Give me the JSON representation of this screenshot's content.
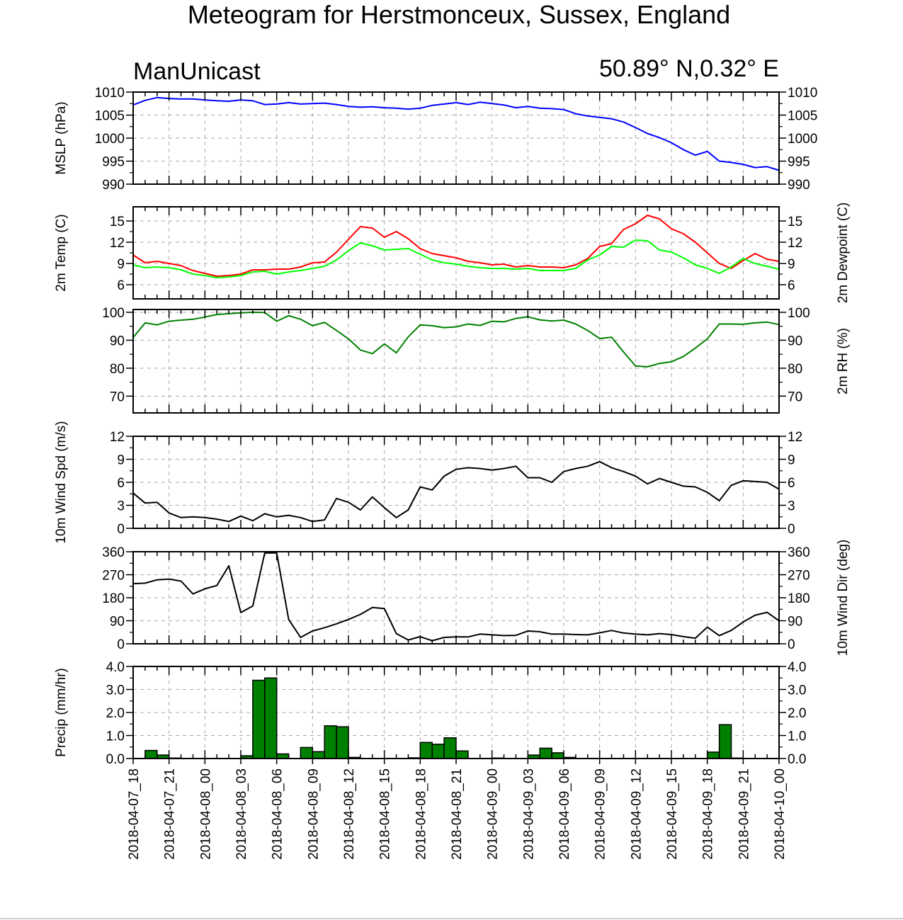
{
  "title": "Meteogram for Herstmonceux, Sussex, England",
  "model_label": "ManUnicast",
  "location_label": "50.89° N,0.32° E",
  "x_labels": [
    "2018-04-07_18",
    "2018-04-07_21",
    "2018-04-08_00",
    "2018-04-08_03",
    "2018-04-08_06",
    "2018-04-08_09",
    "2018-04-08_12",
    "2018-04-08_15",
    "2018-04-08_18",
    "2018-04-08_21",
    "2018-04-09_00",
    "2018-04-09_03",
    "2018-04-09_06",
    "2018-04-09_09",
    "2018-04-09_12",
    "2018-04-09_15",
    "2018-04-09_18",
    "2018-04-09_21",
    "2018-04-10_00"
  ],
  "chart_data": [
    {
      "type": "line",
      "ylabel": "MSLP (hPa)",
      "ylim": [
        990,
        1010
      ],
      "yticks": [
        990,
        995,
        1000,
        1005,
        1010
      ],
      "ytick_labels": [
        "990",
        "995",
        "1000",
        "1005",
        "1010"
      ],
      "grid": true,
      "series": [
        {
          "color": "#0000ff",
          "x": [
            0,
            1,
            2,
            3,
            4,
            5,
            6,
            7,
            8,
            9,
            10,
            11,
            12,
            13,
            14,
            15,
            16,
            17,
            18,
            19,
            20,
            21,
            22,
            23,
            24,
            25,
            26,
            27,
            28,
            29,
            30,
            31,
            32,
            33,
            34,
            35,
            36,
            37,
            38,
            39,
            40,
            41,
            42,
            43,
            44,
            45,
            46,
            47,
            48,
            49,
            50,
            51,
            52,
            53,
            54
          ],
          "y": [
            1007.2,
            1008.2,
            1008.8,
            1008.6,
            1008.5,
            1008.5,
            1008.3,
            1008.1,
            1008.0,
            1008.3,
            1008.1,
            1007.3,
            1007.4,
            1007.7,
            1007.4,
            1007.5,
            1007.6,
            1007.3,
            1006.9,
            1006.7,
            1006.8,
            1006.6,
            1006.5,
            1006.3,
            1006.5,
            1007.1,
            1007.4,
            1007.7,
            1007.3,
            1007.8,
            1007.5,
            1007.2,
            1006.6,
            1006.9,
            1006.5,
            1006.4,
            1006.2,
            1005.3,
            1004.8,
            1004.5,
            1004.2,
            1003.5,
            1002.3,
            1001.0,
            1000.1,
            999.0,
            997.5,
            996.3,
            997.1,
            995.0,
            994.7,
            994.3,
            993.6,
            993.8,
            993.0
          ]
        }
      ]
    },
    {
      "type": "line",
      "ylabel": "2m Temp (C)",
      "ylabel_right": "2m Dewpoint (C)",
      "ylim": [
        4,
        17
      ],
      "yticks": [
        6,
        9,
        12,
        15
      ],
      "ytick_labels": [
        "6",
        "9",
        "12",
        "15"
      ],
      "grid": true,
      "series": [
        {
          "color": "#ff0000",
          "x": [
            0,
            1,
            2,
            3,
            4,
            5,
            6,
            7,
            8,
            9,
            10,
            11,
            12,
            13,
            14,
            15,
            16,
            17,
            18,
            19,
            20,
            21,
            22,
            23,
            24,
            25,
            26,
            27,
            28,
            29,
            30,
            31,
            32,
            33,
            34,
            35,
            36,
            37,
            38,
            39,
            40,
            41,
            42,
            43,
            44,
            45,
            46,
            47,
            48,
            49,
            50,
            51,
            52,
            53,
            54
          ],
          "y": [
            10.2,
            9.1,
            9.3,
            9.0,
            8.7,
            8.0,
            7.6,
            7.2,
            7.3,
            7.5,
            8.1,
            8.1,
            8.2,
            8.2,
            8.5,
            9.1,
            9.2,
            10.6,
            12.4,
            14.2,
            14.0,
            12.7,
            13.5,
            12.5,
            11.1,
            10.4,
            10.1,
            9.8,
            9.3,
            9.1,
            8.8,
            8.9,
            8.5,
            8.7,
            8.5,
            8.5,
            8.4,
            8.8,
            9.7,
            11.4,
            11.8,
            13.8,
            14.6,
            15.8,
            15.3,
            13.9,
            13.2,
            12.0,
            10.5,
            9.0,
            8.3,
            9.4,
            10.4,
            9.6,
            9.3
          ]
        },
        {
          "color": "#00ff00",
          "x": [
            0,
            1,
            2,
            3,
            4,
            5,
            6,
            7,
            8,
            9,
            10,
            11,
            12,
            13,
            14,
            15,
            16,
            17,
            18,
            19,
            20,
            21,
            22,
            23,
            24,
            25,
            26,
            27,
            28,
            29,
            30,
            31,
            32,
            33,
            34,
            35,
            36,
            37,
            38,
            39,
            40,
            41,
            42,
            43,
            44,
            45,
            46,
            47,
            48,
            49,
            50,
            51,
            52,
            53,
            54
          ],
          "y": [
            8.8,
            8.4,
            8.5,
            8.4,
            8.1,
            7.5,
            7.3,
            7.0,
            7.1,
            7.3,
            7.8,
            7.9,
            7.5,
            7.8,
            8.0,
            8.3,
            8.6,
            9.5,
            10.8,
            11.9,
            11.5,
            10.9,
            11.0,
            11.1,
            10.3,
            9.5,
            9.1,
            8.9,
            8.6,
            8.4,
            8.3,
            8.3,
            8.2,
            8.3,
            8.0,
            8.0,
            8.0,
            8.3,
            9.5,
            10.2,
            11.4,
            11.3,
            12.3,
            12.2,
            10.9,
            10.6,
            9.8,
            8.8,
            8.3,
            7.6,
            8.5,
            9.7,
            9.0,
            8.6,
            8.2
          ]
        }
      ]
    },
    {
      "type": "line",
      "ylabel_right": "2m RH (%)",
      "ylim": [
        64,
        101
      ],
      "yticks": [
        70,
        80,
        90,
        100
      ],
      "ytick_labels": [
        "70",
        "80",
        "90",
        "100"
      ],
      "grid": true,
      "series": [
        {
          "color": "#008000",
          "x": [
            0,
            1,
            2,
            3,
            4,
            5,
            6,
            7,
            8,
            9,
            10,
            11,
            12,
            13,
            14,
            15,
            16,
            17,
            18,
            19,
            20,
            21,
            22,
            23,
            24,
            25,
            26,
            27,
            28,
            29,
            30,
            31,
            32,
            33,
            34,
            35,
            36,
            37,
            38,
            39,
            40,
            41,
            42,
            43,
            44,
            45,
            46,
            47,
            48,
            49,
            50,
            51,
            52,
            53,
            54
          ],
          "y": [
            91,
            96.2,
            95.5,
            96.8,
            97.2,
            97.5,
            98.3,
            99.2,
            99.5,
            99.8,
            100,
            99.9,
            96.8,
            98.8,
            97.5,
            95.2,
            96.4,
            93.5,
            90.5,
            86.5,
            85.2,
            88.7,
            85.5,
            91.2,
            95.5,
            95.2,
            94.5,
            94.8,
            95.8,
            95.3,
            96.8,
            96.6,
            97.8,
            98.4,
            97.3,
            96.9,
            97.2,
            95.8,
            93.5,
            90.6,
            91.1,
            85.8,
            80.8,
            80.5,
            81.7,
            82.3,
            84.2,
            87.2,
            90.5,
            95.8,
            95.8,
            95.7,
            96.2,
            96.5,
            95.6
          ]
        }
      ]
    },
    {
      "type": "line",
      "ylabel": "10m Wind Spd (m/s)",
      "ylim": [
        0,
        12
      ],
      "yticks": [
        0,
        3,
        6,
        9,
        12
      ],
      "ytick_labels": [
        "0",
        "3",
        "6",
        "9",
        "12"
      ],
      "grid": true,
      "series": [
        {
          "color": "#000000",
          "x": [
            0,
            1,
            2,
            3,
            4,
            5,
            6,
            7,
            8,
            9,
            10,
            11,
            12,
            13,
            14,
            15,
            16,
            17,
            18,
            19,
            20,
            21,
            22,
            23,
            24,
            25,
            26,
            27,
            28,
            29,
            30,
            31,
            32,
            33,
            34,
            35,
            36,
            37,
            38,
            39,
            40,
            41,
            42,
            43,
            44,
            45,
            46,
            47,
            48,
            49,
            50,
            51,
            52,
            53,
            54
          ],
          "y": [
            4.6,
            3.3,
            3.4,
            2.0,
            1.4,
            1.5,
            1.4,
            1.2,
            0.9,
            1.6,
            1.0,
            1.9,
            1.5,
            1.7,
            1.4,
            0.9,
            1.1,
            3.9,
            3.4,
            2.4,
            4.1,
            2.7,
            1.4,
            2.4,
            5.4,
            5.0,
            6.8,
            7.7,
            7.9,
            7.8,
            7.6,
            7.8,
            8.1,
            6.6,
            6.6,
            6.0,
            7.4,
            7.8,
            8.1,
            8.7,
            7.9,
            7.4,
            6.8,
            5.8,
            6.5,
            6.0,
            5.5,
            5.4,
            4.7,
            3.6,
            5.6,
            6.2,
            6.1,
            6.0,
            5.1
          ]
        }
      ]
    },
    {
      "type": "line",
      "ylabel_right": "10m Wind Dir (deg)",
      "ylim": [
        0,
        360
      ],
      "yticks": [
        0,
        90,
        180,
        270,
        360
      ],
      "ytick_labels": [
        "0",
        "90",
        "180",
        "270",
        "360"
      ],
      "grid": true,
      "series": [
        {
          "color": "#000000",
          "x": [
            0,
            1,
            2,
            3,
            4,
            5,
            6,
            7,
            8,
            9,
            10,
            11,
            12,
            13,
            14,
            15,
            16,
            17,
            18,
            19,
            20,
            21,
            22,
            23,
            24,
            25,
            26,
            27,
            28,
            29,
            30,
            31,
            32,
            33,
            34,
            35,
            36,
            37,
            38,
            39,
            40,
            41,
            42,
            43,
            44,
            45,
            46,
            47,
            48,
            49,
            50,
            51,
            52,
            53,
            54
          ],
          "y": [
            235,
            237,
            250,
            253,
            245,
            195,
            215,
            228,
            305,
            122,
            148,
            355,
            355,
            95,
            25,
            50,
            63,
            78,
            95,
            115,
            142,
            138,
            40,
            15,
            28,
            12,
            25,
            27,
            27,
            38,
            35,
            32,
            33,
            50,
            47,
            38,
            38,
            36,
            35,
            43,
            52,
            42,
            38,
            35,
            40,
            36,
            28,
            22,
            65,
            32,
            52,
            85,
            112,
            123,
            90
          ]
        }
      ]
    },
    {
      "type": "bar",
      "ylabel": "Precip (mm/hr)",
      "ylim": [
        0,
        4
      ],
      "yticks": [
        0,
        1,
        2,
        3,
        4
      ],
      "ytick_labels": [
        "0.0",
        "1.0",
        "2.0",
        "3.0",
        "4.0"
      ],
      "grid": true,
      "bar_color": "#008000",
      "x": [
        0,
        1,
        2,
        3,
        4,
        5,
        6,
        7,
        8,
        9,
        10,
        11,
        12,
        13,
        14,
        15,
        16,
        17,
        18,
        19,
        20,
        21,
        22,
        23,
        24,
        25,
        26,
        27,
        28,
        29,
        30,
        31,
        32,
        33,
        34,
        35,
        36,
        37,
        38,
        39,
        40,
        41,
        42,
        43,
        44,
        45,
        46,
        47,
        48,
        49,
        50,
        51,
        52,
        53
      ],
      "values": [
        0,
        0.35,
        0.15,
        0.02,
        0,
        0,
        0,
        0,
        0,
        0.12,
        3.4,
        3.5,
        0.2,
        0,
        0.48,
        0.3,
        1.42,
        1.38,
        0.05,
        0,
        0,
        0,
        0,
        0.03,
        0.7,
        0.62,
        0.9,
        0.33,
        0,
        0,
        0.02,
        0,
        0,
        0.15,
        0.45,
        0.25,
        0.05,
        0,
        0,
        0,
        0,
        0,
        0,
        0,
        0,
        0,
        0,
        0,
        0.28,
        1.47,
        0.02,
        0,
        0,
        0
      ]
    }
  ]
}
